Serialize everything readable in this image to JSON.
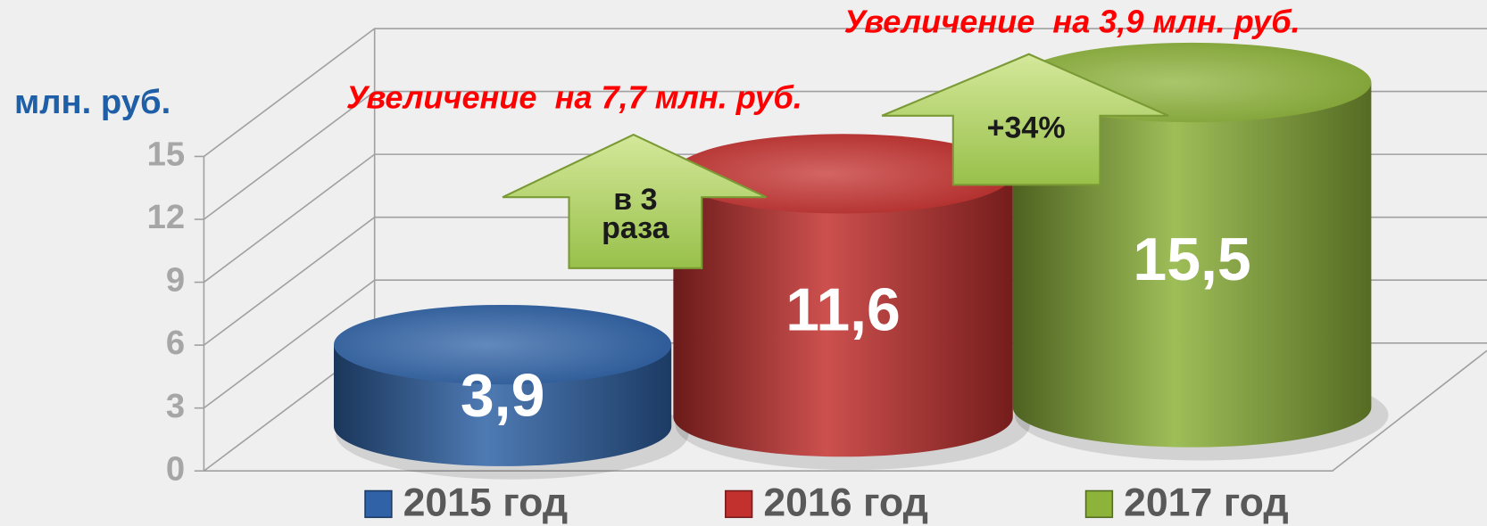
{
  "chart_data": {
    "type": "bar3d",
    "y_label": "млн. руб.",
    "categories": [
      "2015 год",
      "2016 год",
      "2017 год"
    ],
    "values": [
      3.9,
      11.6,
      15.5
    ],
    "value_labels": [
      "3,9",
      "11,6",
      "15,5"
    ],
    "colors": [
      "#2f62a6",
      "#c3312f",
      "#8db33b"
    ],
    "ylim": [
      0,
      15
    ],
    "yticks": [
      0,
      3,
      6,
      9,
      12,
      15
    ],
    "grid": true,
    "annotations": [
      "Увеличение  на 7,7 млн. руб.",
      "Увеличение  на 3,9 млн. руб.",
      "в 3 раза",
      "+34%"
    ]
  }
}
